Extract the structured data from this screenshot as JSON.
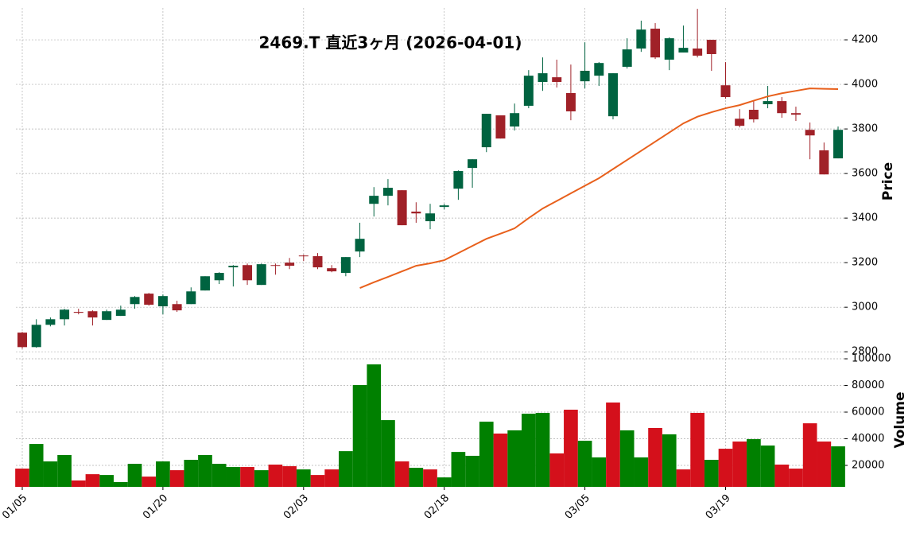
{
  "chart_data": {
    "type": "candlestick",
    "title": "2469.T 直近3ヶ月 (2026-04-01)",
    "ylabel": "Price",
    "categories": [
      "01/05",
      null,
      null,
      null,
      null,
      null,
      null,
      null,
      null,
      null,
      "01/20",
      null,
      null,
      null,
      null,
      null,
      null,
      null,
      null,
      null,
      "02/03",
      null,
      null,
      null,
      null,
      null,
      null,
      null,
      null,
      null,
      "02/18",
      null,
      null,
      null,
      null,
      null,
      null,
      null,
      null,
      null,
      "03/05",
      null,
      null,
      null,
      null,
      null,
      null,
      null,
      null,
      null,
      "03/19",
      null,
      null,
      null,
      null,
      null,
      null,
      null,
      null
    ],
    "open": [
      2886,
      2821,
      2921,
      2946,
      2979,
      2982,
      2943,
      2961,
      3014,
      3061,
      3004,
      3014,
      3014,
      3075,
      3121,
      3179,
      3189,
      3100,
      3189,
      3200,
      3232,
      3229,
      3175,
      3154,
      3250,
      3464,
      3500,
      3525,
      3429,
      3386,
      3450,
      3532,
      3625,
      3718,
      3861,
      3811,
      3904,
      4011,
      4032,
      3961,
      4014,
      4039,
      3857,
      4079,
      4161,
      4250,
      4111,
      4143,
      4161,
      4200,
      3996,
      3846,
      3886,
      3911,
      3925,
      3871,
      3796,
      3704,
      3668
    ],
    "high": [
      2889,
      2946,
      2954,
      2993,
      2993,
      2986,
      2989,
      3007,
      3050,
      3064,
      3057,
      3029,
      3089,
      3139,
      3157,
      3189,
      3196,
      3196,
      3196,
      3221,
      3236,
      3243,
      3189,
      3225,
      3379,
      3539,
      3575,
      3525,
      3471,
      3464,
      3464,
      3614,
      3664,
      3868,
      3861,
      3914,
      4064,
      4121,
      4111,
      4089,
      4189,
      4100,
      4050,
      4207,
      4286,
      4275,
      4211,
      4264,
      4339,
      4200,
      4100,
      3889,
      3929,
      3993,
      3943,
      3900,
      3829,
      3739,
      3811
    ],
    "low": [
      2814,
      2818,
      2914,
      2918,
      2968,
      2918,
      2943,
      2961,
      2993,
      3007,
      2968,
      2979,
      3014,
      3075,
      3104,
      3093,
      3100,
      3100,
      3146,
      3171,
      3207,
      3171,
      3157,
      3139,
      3225,
      3407,
      3457,
      3368,
      3379,
      3350,
      3439,
      3482,
      3536,
      3696,
      3757,
      3793,
      3893,
      3971,
      3986,
      3839,
      3982,
      3993,
      3843,
      4071,
      4146,
      4114,
      4064,
      4143,
      4121,
      4061,
      3936,
      3807,
      3829,
      3893,
      3850,
      3836,
      3664,
      3596,
      3668
    ],
    "close": [
      2821,
      2921,
      2946,
      2989,
      2975,
      2954,
      2982,
      2989,
      3046,
      3011,
      3050,
      2986,
      3071,
      3139,
      3154,
      3186,
      3121,
      3193,
      3186,
      3186,
      3229,
      3179,
      3161,
      3225,
      3307,
      3500,
      3536,
      3368,
      3421,
      3421,
      3457,
      3611,
      3664,
      3868,
      3757,
      3871,
      4039,
      4050,
      4011,
      3879,
      4061,
      4096,
      4050,
      4157,
      4246,
      4121,
      4207,
      4164,
      4129,
      4136,
      3943,
      3814,
      3843,
      3925,
      3871,
      3864,
      3771,
      3596,
      3796
    ],
    "up_color": "#006340",
    "down_color": "#a02128",
    "moving_average": {
      "color": "#e8601c",
      "values": [
        null,
        null,
        null,
        null,
        null,
        null,
        null,
        null,
        null,
        null,
        null,
        null,
        null,
        null,
        null,
        null,
        null,
        null,
        null,
        null,
        null,
        null,
        null,
        null,
        3086,
        3112,
        3136,
        3161,
        3186,
        3197,
        3211,
        3243,
        3275,
        3307,
        3330,
        3354,
        3400,
        3443,
        3477,
        3511,
        3545,
        3579,
        3620,
        3661,
        3702,
        3743,
        3784,
        3825,
        3855,
        3875,
        3893,
        3907,
        3927,
        3946,
        3960,
        3971,
        3982,
        3980,
        3979
      ]
    },
    "ylim": [
      2790,
      4343
    ],
    "yticks": [
      2800,
      3000,
      3200,
      3400,
      3600,
      3800,
      4000,
      4200
    ],
    "grid": true,
    "volume": {
      "label": "Volume",
      "values": [
        17600,
        36100,
        23000,
        27800,
        8700,
        13400,
        12800,
        7500,
        21200,
        11600,
        23000,
        16400,
        24200,
        27800,
        21200,
        18800,
        18800,
        16400,
        20600,
        19400,
        17000,
        12800,
        17000,
        30700,
        80300,
        95800,
        54000,
        23000,
        18200,
        17000,
        11000,
        30100,
        27200,
        52800,
        43900,
        46300,
        58800,
        59400,
        29000,
        61800,
        38500,
        26000,
        67200,
        46300,
        26000,
        48100,
        43300,
        17000,
        59400,
        24200,
        32500,
        37900,
        39700,
        34900,
        20600,
        17600,
        51600,
        37900,
        34300
      ],
      "up_color": "#008000",
      "down_color": "#d4101b",
      "ylim": [
        3900,
        102400
      ],
      "yticks": [
        20000,
        40000,
        60000,
        80000,
        100000
      ]
    }
  }
}
